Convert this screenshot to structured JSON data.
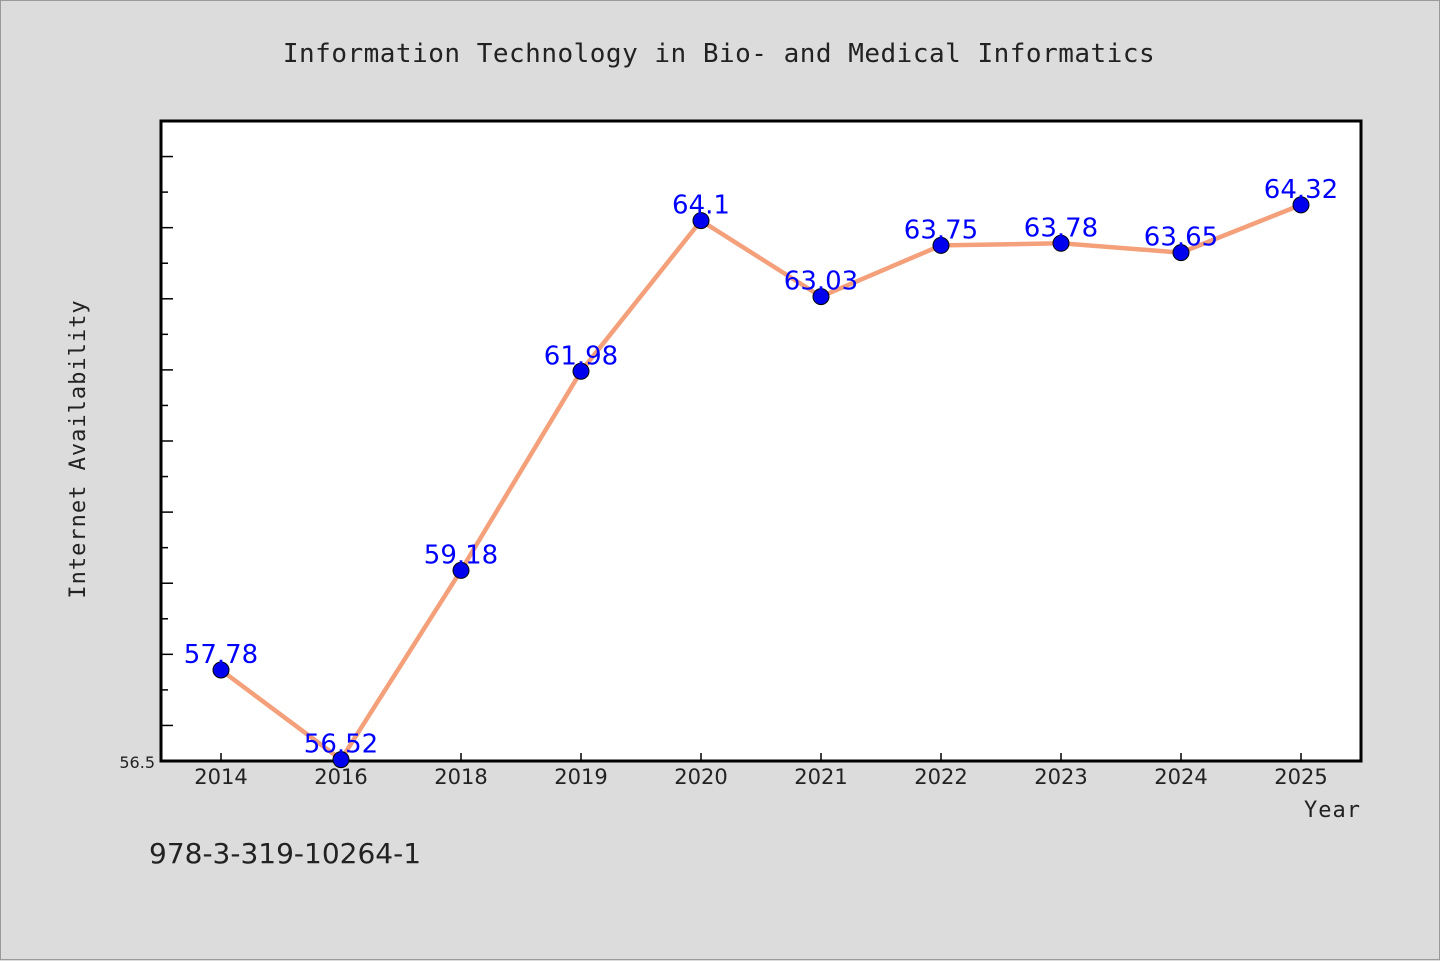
{
  "chart_data": {
    "type": "line",
    "title": "Information Technology in Bio- and Medical Informatics",
    "xlabel": "Year",
    "ylabel": "Internet Availability",
    "categories": [
      "2014",
      "2016",
      "2018",
      "2019",
      "2020",
      "2021",
      "2022",
      "2023",
      "2024",
      "2025"
    ],
    "series": [
      {
        "values": [
          57.78,
          56.52,
          59.18,
          61.98,
          64.1,
          63.03,
          63.75,
          63.78,
          63.65,
          64.32
        ]
      }
    ],
    "data_labels": [
      "57.78",
      "56.52",
      "59.18",
      "61.98",
      "64.1",
      "63.03",
      "63.75",
      "63.78",
      "63.65",
      "64.32"
    ],
    "ylim": [
      56.5,
      65.5
    ],
    "y_tick_labels": [
      "56.5"
    ],
    "grid": false,
    "line_color": "#f4a07a",
    "marker_color": "#0000ee",
    "label_color": "#0000ff",
    "plot_background": "#ffffff",
    "page_background": "#dcdcdc"
  },
  "footnote": "978-3-319-10264-1"
}
